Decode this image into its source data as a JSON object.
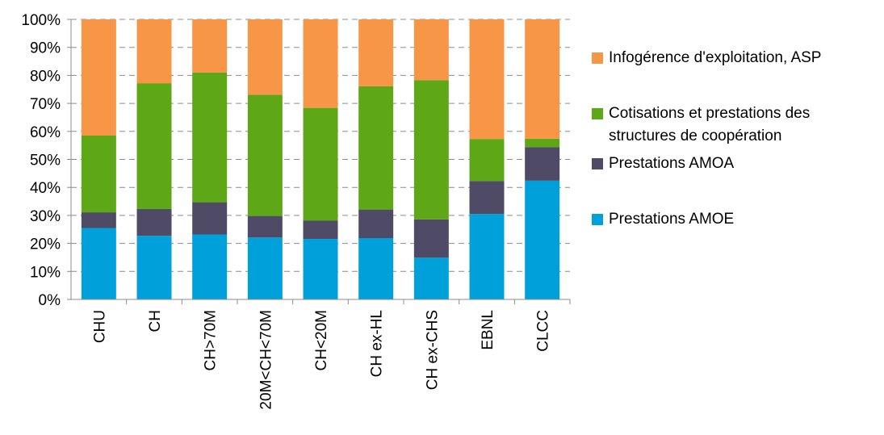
{
  "chart_data": {
    "type": "bar",
    "stacked": true,
    "percent": true,
    "categories": [
      "CHU",
      "CH",
      "CH>70M",
      "20M<CH<70M",
      "CH<20M",
      "CH ex-HL",
      "CH ex-CHS",
      "EBNL",
      "CLCC"
    ],
    "series": [
      {
        "name": "Prestations AMOE",
        "color": "#00A1DA",
        "values": [
          25.5,
          22.7,
          23.2,
          22.1,
          21.6,
          21.9,
          14.9,
          30.5,
          42.4
        ]
      },
      {
        "name": "Prestations AMOA",
        "color": "#4F4A65",
        "values": [
          5.6,
          9.6,
          11.5,
          7.7,
          6.6,
          10.2,
          13.7,
          11.8,
          12.0
        ]
      },
      {
        "name": "Cotisations et prestations des\nstructures de coopération",
        "color": "#5EA716",
        "values": [
          27.4,
          44.9,
          46.3,
          43.3,
          40.2,
          44.0,
          49.7,
          15.0,
          3.0
        ]
      },
      {
        "name": "Infogérence d'exploitation, ASP",
        "color": "#F79646",
        "values": [
          41.5,
          22.8,
          19.0,
          26.9,
          31.6,
          23.9,
          21.7,
          42.7,
          42.6
        ]
      }
    ],
    "yticks": [
      "0%",
      "10%",
      "20%",
      "30%",
      "40%",
      "50%",
      "60%",
      "70%",
      "80%",
      "90%",
      "100%"
    ],
    "ylim": [
      0,
      100
    ],
    "grid": true,
    "legend_position": "right"
  },
  "legend": [
    {
      "label": "Infogérence d'exploitation, ASP",
      "color": "#F79646"
    },
    {
      "label": "Cotisations et prestations des\nstructures de coopération",
      "color": "#5EA716"
    },
    {
      "label": "Prestations AMOA",
      "color": "#4F4A65"
    },
    {
      "label": "Prestations AMOE",
      "color": "#00A1DA"
    }
  ]
}
